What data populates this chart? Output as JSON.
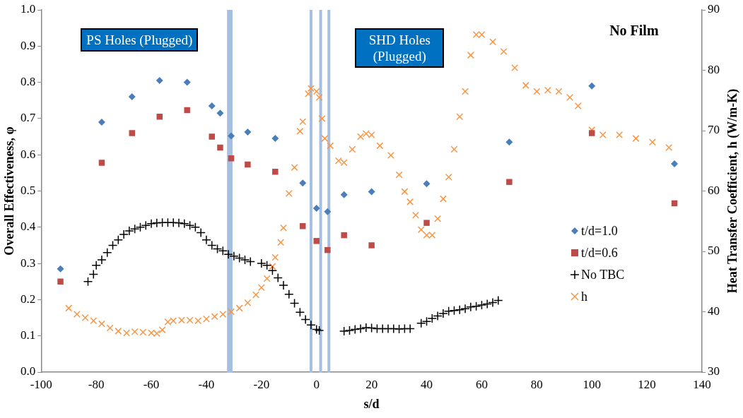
{
  "chart_data": {
    "type": "scatter",
    "xlabel": "s/d",
    "ylabel": "Overall Effectiveness, φ",
    "y2label": "Heat Transfer Coefficient, h (W/m-K)",
    "xlim": [
      -100,
      140
    ],
    "xticks": [
      -100,
      -80,
      -60,
      -40,
      -20,
      0,
      20,
      40,
      60,
      80,
      100,
      120,
      140
    ],
    "ylim": [
      0,
      1
    ],
    "yticks": [
      {
        "value": 0,
        "label": "0.0"
      },
      {
        "value": 0.1,
        "label": "0.1"
      },
      {
        "value": 0.2,
        "label": "0.2"
      },
      {
        "value": 0.3,
        "label": "0.3"
      },
      {
        "value": 0.4,
        "label": "0.4"
      },
      {
        "value": 0.5,
        "label": "0.5"
      },
      {
        "value": 0.6,
        "label": "0.6"
      },
      {
        "value": 0.7,
        "label": "0.7"
      },
      {
        "value": 0.8,
        "label": "0.8"
      },
      {
        "value": 0.9,
        "label": "0.9"
      },
      {
        "value": 1,
        "label": "1.0"
      }
    ],
    "y2lim": [
      30,
      90
    ],
    "y2ticks": [
      30,
      40,
      50,
      60,
      70,
      80,
      90
    ],
    "grid": false,
    "legend": "right",
    "series": [
      {
        "name": "t/d=1.0",
        "color": "#4a7ebb",
        "marker": "diamond",
        "x": [
          -93,
          -78,
          -67,
          -57,
          -47,
          -38,
          -35,
          -31,
          -25,
          -15,
          -5,
          0,
          4,
          10,
          20,
          40,
          70,
          100,
          130
        ],
        "values": [
          0.285,
          0.69,
          0.76,
          0.805,
          0.8,
          0.735,
          0.715,
          0.652,
          0.663,
          0.645,
          0.522,
          0.452,
          0.443,
          0.49,
          0.498,
          0.52,
          0.635,
          0.79,
          0.575
        ]
      },
      {
        "name": "t/d=0.6",
        "color": "#be4b48",
        "marker": "square",
        "x": [
          -93,
          -78,
          -67,
          -57,
          -47,
          -38,
          -35,
          -31,
          -25,
          -15,
          -5,
          0,
          4,
          10,
          20,
          40,
          70,
          100,
          130
        ],
        "values": [
          0.25,
          0.578,
          0.66,
          0.705,
          0.723,
          0.65,
          0.62,
          0.59,
          0.573,
          0.553,
          0.403,
          0.362,
          0.337,
          0.378,
          0.35,
          0.412,
          0.525,
          0.66,
          0.466
        ]
      },
      {
        "name": "No TBC",
        "color": "#000000",
        "marker": "cross",
        "x": [
          -83,
          -81,
          -80,
          -78,
          -76,
          -74,
          -72,
          -70,
          -68,
          -66,
          -64,
          -62,
          -60,
          -58,
          -56,
          -54,
          -52,
          -50,
          -48,
          -46,
          -44,
          -42,
          -40,
          -38,
          -36,
          -34,
          -32,
          -30,
          -28,
          -26,
          -24,
          -20,
          -18,
          -16,
          -14,
          -12,
          -10,
          -8,
          -6,
          -4,
          -2,
          0,
          1,
          10,
          12,
          14,
          16,
          18,
          20,
          22,
          24,
          26,
          28,
          30,
          32,
          34,
          38,
          40,
          42,
          44,
          46,
          48,
          50,
          52,
          54,
          56,
          58,
          60,
          62,
          64,
          66
        ],
        "values": [
          0.25,
          0.27,
          0.295,
          0.31,
          0.33,
          0.35,
          0.365,
          0.38,
          0.39,
          0.395,
          0.4,
          0.405,
          0.41,
          0.412,
          0.413,
          0.413,
          0.413,
          0.412,
          0.41,
          0.405,
          0.4,
          0.385,
          0.365,
          0.35,
          0.34,
          0.335,
          0.325,
          0.32,
          0.315,
          0.31,
          0.305,
          0.3,
          0.295,
          0.28,
          0.26,
          0.24,
          0.215,
          0.19,
          0.165,
          0.145,
          0.13,
          0.118,
          0.115,
          0.113,
          0.115,
          0.118,
          0.12,
          0.123,
          0.122,
          0.12,
          0.12,
          0.12,
          0.12,
          0.119,
          0.12,
          0.12,
          0.135,
          0.14,
          0.148,
          0.155,
          0.162,
          0.168,
          0.17,
          0.172,
          0.175,
          0.18,
          0.182,
          0.185,
          0.188,
          0.192,
          0.198
        ]
      },
      {
        "name": "h",
        "color": "#f79646",
        "marker": "x",
        "axis": "y2",
        "x": [
          -90,
          -87,
          -84,
          -81,
          -78,
          -75,
          -72,
          -69,
          -66,
          -63,
          -60,
          -58,
          -56,
          -54,
          -52,
          -49,
          -46,
          -43,
          -40,
          -37,
          -34,
          -31,
          -28,
          -25,
          -22,
          -20,
          -18,
          -16,
          -15,
          -13,
          -12,
          -10,
          -8,
          -6,
          -5,
          -3,
          -2,
          0,
          1,
          2,
          3,
          5,
          8,
          10,
          13,
          16,
          18,
          20,
          23,
          27,
          30,
          32,
          34,
          36,
          38,
          40,
          42,
          44,
          46,
          48,
          50,
          52,
          54,
          56,
          58,
          60,
          64,
          68,
          72,
          76,
          80,
          84,
          88,
          92,
          95,
          100,
          104,
          110,
          116,
          122,
          128
        ],
        "values": [
          40.6,
          39.6,
          39,
          38.5,
          38,
          37.3,
          36.8,
          36.5,
          36.7,
          36.6,
          36.5,
          36.4,
          37,
          38.3,
          38.5,
          38.6,
          38.6,
          38.5,
          38.8,
          39.2,
          39.6,
          40,
          40.6,
          41.5,
          42.8,
          44,
          45.5,
          47.5,
          49,
          51.5,
          53.9,
          59.6,
          63.9,
          69.9,
          71.5,
          76.1,
          77,
          76.5,
          75.5,
          72,
          68.7,
          67.5,
          65,
          64.7,
          66.9,
          69,
          69.5,
          69.3,
          67.5,
          65.9,
          62.7,
          59.9,
          58.2,
          56,
          53.6,
          52.7,
          52.7,
          55.4,
          58.7,
          62.3,
          66.9,
          72.3,
          76.5,
          82.5,
          85.9,
          85.9,
          84.7,
          83.1,
          80.4,
          77.5,
          76.5,
          76.7,
          76.5,
          75.5,
          74.1,
          70.1,
          69.3,
          69.3,
          68.7,
          68.1,
          67.2
        ]
      }
    ],
    "bands": [
      {
        "axis": "x",
        "from": -32.5,
        "to": -30.5,
        "color": "#a6bfe0"
      }
    ],
    "ref_lines": [
      {
        "axis": "x",
        "value": -2,
        "color": "#a6bfe0"
      },
      {
        "axis": "x",
        "value": 1.5,
        "color": "#a6bfe0"
      },
      {
        "axis": "x",
        "value": 4.5,
        "color": "#a6bfe0"
      }
    ],
    "annotations": [
      "PS Holes (Plugged)",
      "SHD Holes (Plugged)",
      "No Film"
    ]
  }
}
